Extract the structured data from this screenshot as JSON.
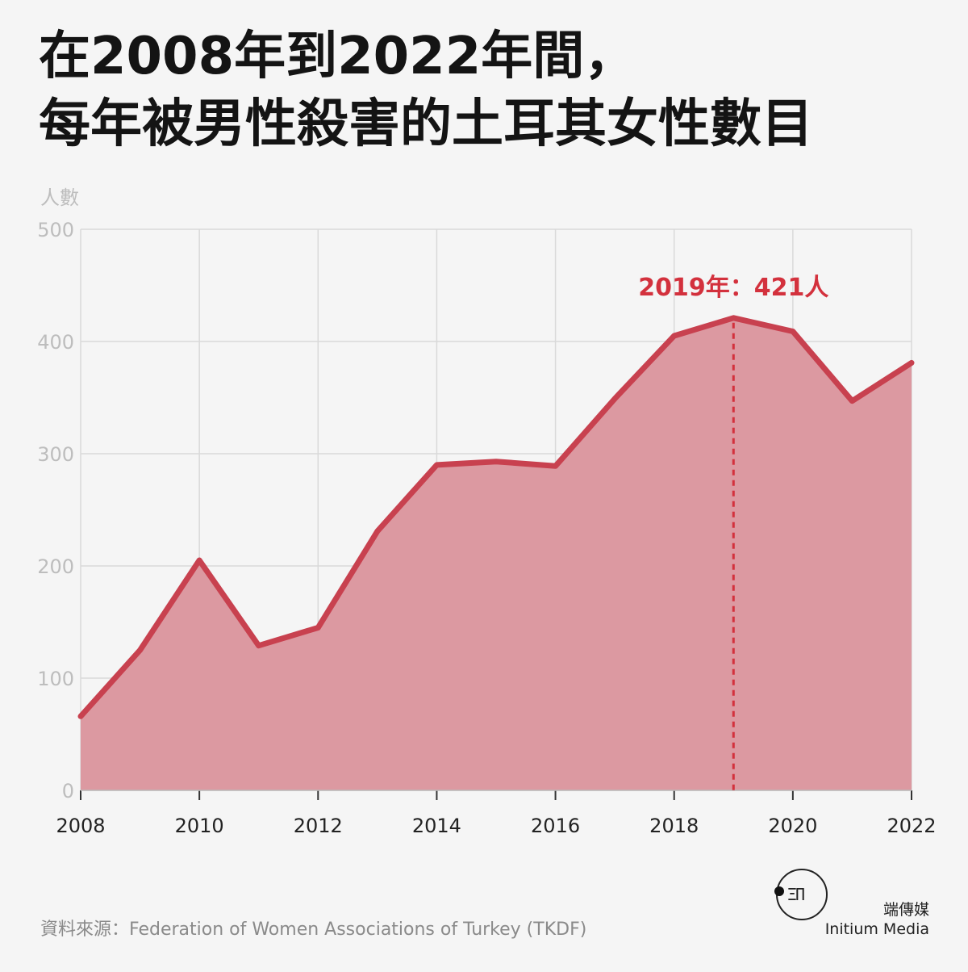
{
  "title": {
    "line1": "在2008年到2022年間，",
    "line2": "每年被男性殺害的土耳其女性數目"
  },
  "source": "資料來源：Federation of Women Associations of Turkey (TKDF)",
  "brand": {
    "name_cn": "端傳媒",
    "name_en": "Initium Media"
  },
  "colors": {
    "line": "#c8414f",
    "area": "#dc99a1",
    "annotation": "#d3313d",
    "grid": "#d9d9d9",
    "tick_text": "#bdbdbd",
    "xtick_text": "#222222"
  },
  "chart_data": {
    "type": "area",
    "title": "在2008年到2022年間，每年被男性殺害的土耳其女性數目",
    "ylabel": "人數",
    "xlabel": "",
    "x": [
      2008,
      2009,
      2010,
      2011,
      2012,
      2013,
      2014,
      2015,
      2016,
      2017,
      2018,
      2019,
      2020,
      2021,
      2022
    ],
    "series": [
      {
        "values": [
          66,
          125,
          205,
          129,
          145,
          231,
          290,
          293,
          289,
          349,
          405,
          421,
          409,
          347,
          381
        ]
      }
    ],
    "xlim": [
      2008,
      2022
    ],
    "ylim": [
      0,
      500
    ],
    "x_ticks": [
      "2008",
      "2010",
      "2012",
      "2014",
      "2016",
      "2018",
      "2020",
      "2022"
    ],
    "y_ticks": [
      "0",
      "100",
      "200",
      "300",
      "400",
      "500"
    ],
    "grid": true,
    "annotation": {
      "x": 2019,
      "y": 421,
      "text": "2019年：421人"
    }
  }
}
